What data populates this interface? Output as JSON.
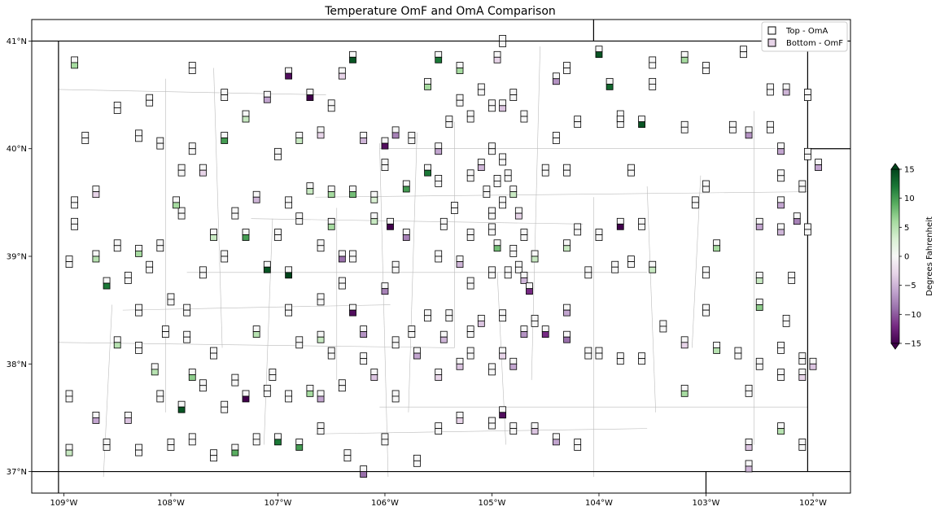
{
  "title": "Temperature OmF and OmA Comparison",
  "legend": {
    "placement": "upper-right",
    "items": [
      {
        "label": "Top - OmA"
      },
      {
        "label": "Bottom - OmF"
      }
    ]
  },
  "map": {
    "lon_range": [
      -109.3,
      -101.65
    ],
    "lat_range": [
      36.8,
      41.2
    ],
    "state_border": {
      "lon": [
        -109.05,
        -102.05
      ],
      "lat": [
        37.0,
        41.0
      ]
    },
    "lon_ticks": [
      "109°W",
      "108°W",
      "107°W",
      "106°W",
      "105°W",
      "104°W",
      "103°W",
      "102°W"
    ],
    "lat_ticks": [
      "41°N",
      "40°N",
      "39°N",
      "38°N",
      "37°N"
    ]
  },
  "colorbar": {
    "label": "Degrees Fahrenheit",
    "range": [
      -15,
      15
    ],
    "ticks": [
      "15",
      "10",
      "5",
      "0",
      "−5",
      "−10",
      "−15"
    ],
    "colormap": "PRGn",
    "stops": [
      "#40004b",
      "#762a83",
      "#9970ab",
      "#c2a5cf",
      "#e7d4e8",
      "#f7f7f7",
      "#d9f0d3",
      "#a6dba0",
      "#5aae61",
      "#1b7837",
      "#00441b"
    ]
  },
  "chart_data": {
    "type": "scatter",
    "title": "Temperature OmF and OmA Comparison",
    "xlabel": "",
    "ylabel": "",
    "x_range": [
      -109.3,
      -101.65
    ],
    "y_range": [
      36.8,
      41.2
    ],
    "value_range": [
      -15,
      15
    ],
    "series": [
      {
        "name": "Top - OmA"
      },
      {
        "name": "Bottom - OmF"
      }
    ],
    "points": [
      [
        -108.5,
        40.38,
        0,
        0
      ],
      [
        -108.2,
        40.45,
        0,
        0
      ],
      [
        -107.8,
        40.75,
        0,
        0
      ],
      [
        -108.3,
        40.12,
        0,
        0
      ],
      [
        -107.5,
        40.5,
        0,
        0
      ],
      [
        -107.1,
        40.48,
        0,
        -6
      ],
      [
        -106.9,
        40.7,
        0,
        -14
      ],
      [
        -106.7,
        40.5,
        0,
        -15
      ],
      [
        -106.3,
        40.85,
        0,
        14
      ],
      [
        -106.4,
        40.7,
        0,
        -3
      ],
      [
        -106.2,
        40.1,
        0,
        -5
      ],
      [
        -106.0,
        40.05,
        0,
        -14
      ],
      [
        -105.9,
        40.15,
        0,
        -8
      ],
      [
        -105.1,
        40.55,
        0,
        0
      ],
      [
        -105.0,
        40.4,
        0,
        0
      ],
      [
        -104.9,
        40.4,
        0,
        -4
      ],
      [
        -104.8,
        40.5,
        0,
        0
      ],
      [
        -104.7,
        40.3,
        0,
        0
      ],
      [
        -105.2,
        40.3,
        0,
        0
      ],
      [
        -105.3,
        40.45,
        0,
        0
      ],
      [
        -105.0,
        40.0,
        0,
        0
      ],
      [
        -104.9,
        39.9,
        0,
        0
      ],
      [
        -105.1,
        39.85,
        0,
        -5
      ],
      [
        -105.2,
        39.75,
        0,
        0
      ],
      [
        -104.95,
        39.7,
        0,
        0
      ],
      [
        -104.85,
        39.75,
        0,
        0
      ],
      [
        -105.05,
        39.6,
        0,
        0
      ],
      [
        -104.8,
        39.6,
        0,
        4
      ],
      [
        -104.9,
        39.5,
        0,
        0
      ],
      [
        -105.0,
        39.4,
        0,
        0
      ],
      [
        -104.75,
        39.4,
        0,
        -3
      ],
      [
        -104.7,
        39.2,
        0,
        0
      ],
      [
        -104.8,
        39.05,
        0,
        0
      ],
      [
        -104.75,
        38.9,
        0,
        0
      ],
      [
        -104.7,
        38.8,
        0,
        -5
      ],
      [
        -104.65,
        38.7,
        0,
        -12
      ],
      [
        -104.6,
        39.0,
        0,
        4
      ],
      [
        -104.85,
        38.85,
        0,
        0
      ],
      [
        -105.0,
        38.85,
        0,
        0
      ],
      [
        -104.95,
        39.1,
        0,
        8
      ],
      [
        -105.5,
        39.7,
        0,
        0
      ],
      [
        -105.6,
        39.8,
        0,
        12
      ],
      [
        -105.8,
        39.65,
        0,
        10
      ],
      [
        -106.1,
        39.55,
        0,
        3
      ],
      [
        -106.3,
        39.6,
        0,
        8
      ],
      [
        -106.5,
        39.6,
        0,
        6
      ],
      [
        -106.7,
        39.63,
        0,
        4
      ],
      [
        -106.9,
        39.5,
        0,
        0
      ],
      [
        -107.2,
        39.55,
        0,
        -5
      ],
      [
        -107.4,
        39.4,
        0,
        0
      ],
      [
        -107.6,
        39.2,
        0,
        4
      ],
      [
        -107.9,
        39.4,
        0,
        0
      ],
      [
        -108.1,
        39.1,
        0,
        0
      ],
      [
        -108.3,
        39.05,
        0,
        6
      ],
      [
        -108.5,
        39.1,
        0,
        0
      ],
      [
        -108.7,
        39.0,
        0,
        5
      ],
      [
        -108.9,
        39.3,
        0,
        0
      ],
      [
        -108.95,
        38.95,
        0,
        0
      ],
      [
        -108.6,
        38.75,
        0,
        12
      ],
      [
        -108.4,
        38.8,
        0,
        0
      ],
      [
        -108.0,
        38.6,
        0,
        0
      ],
      [
        -107.85,
        38.5,
        0,
        0
      ],
      [
        -107.7,
        38.85,
        0,
        0
      ],
      [
        -107.5,
        39.0,
        0,
        0
      ],
      [
        -107.3,
        39.2,
        0,
        10
      ],
      [
        -107.1,
        38.9,
        0,
        14
      ],
      [
        -106.9,
        38.85,
        0,
        15
      ],
      [
        -106.6,
        38.6,
        0,
        0
      ],
      [
        -106.3,
        38.5,
        0,
        -14
      ],
      [
        -106.0,
        38.7,
        0,
        -8
      ],
      [
        -105.9,
        38.9,
        0,
        0
      ],
      [
        -105.8,
        39.2,
        0,
        -8
      ],
      [
        -105.95,
        39.3,
        0,
        -15
      ],
      [
        -106.1,
        39.35,
        0,
        4
      ],
      [
        -106.4,
        39.0,
        0,
        -9
      ],
      [
        -105.5,
        39.0,
        0,
        0
      ],
      [
        -105.3,
        38.95,
        0,
        -5
      ],
      [
        -105.2,
        38.75,
        0,
        0
      ],
      [
        -105.4,
        38.45,
        0,
        0
      ],
      [
        -105.1,
        38.4,
        0,
        -4
      ],
      [
        -104.9,
        38.45,
        0,
        0
      ],
      [
        -104.7,
        38.3,
        0,
        -7
      ],
      [
        -104.5,
        38.3,
        0,
        -12
      ],
      [
        -104.3,
        38.25,
        0,
        -9
      ],
      [
        -104.1,
        38.1,
        0,
        0
      ],
      [
        -104.6,
        38.4,
        0,
        0
      ],
      [
        -104.8,
        38.0,
        0,
        -6
      ],
      [
        -105.0,
        37.95,
        0,
        0
      ],
      [
        -105.3,
        38.0,
        0,
        -4
      ],
      [
        -105.5,
        37.9,
        0,
        -3
      ],
      [
        -105.7,
        38.1,
        0,
        -6
      ],
      [
        -105.9,
        38.2,
        0,
        0
      ],
      [
        -106.2,
        38.05,
        0,
        0
      ],
      [
        -106.5,
        38.1,
        0,
        0
      ],
      [
        -106.7,
        37.75,
        0,
        6
      ],
      [
        -106.9,
        37.7,
        0,
        0
      ],
      [
        -107.1,
        37.75,
        0,
        0
      ],
      [
        -107.3,
        37.7,
        0,
        -15
      ],
      [
        -107.5,
        37.6,
        0,
        0
      ],
      [
        -107.7,
        37.8,
        0,
        0
      ],
      [
        -107.9,
        37.6,
        0,
        14
      ],
      [
        -108.1,
        37.7,
        0,
        0
      ],
      [
        -108.4,
        37.5,
        0,
        -4
      ],
      [
        -108.7,
        37.5,
        0,
        -6
      ],
      [
        -108.95,
        37.7,
        0,
        0
      ],
      [
        -108.95,
        37.2,
        0,
        4
      ],
      [
        -108.6,
        37.25,
        0,
        0
      ],
      [
        -108.3,
        37.2,
        0,
        0
      ],
      [
        -108.0,
        37.25,
        0,
        0
      ],
      [
        -107.8,
        37.3,
        0,
        0
      ],
      [
        -107.6,
        37.15,
        0,
        0
      ],
      [
        -107.4,
        37.2,
        0,
        9
      ],
      [
        -107.2,
        37.3,
        0,
        0
      ],
      [
        -107.0,
        37.3,
        0,
        12
      ],
      [
        -106.8,
        37.25,
        0,
        10
      ],
      [
        -106.6,
        37.4,
        0,
        0
      ],
      [
        -106.35,
        37.15,
        0,
        0
      ],
      [
        -106.2,
        37.0,
        0,
        -9
      ],
      [
        -106.0,
        37.3,
        0,
        0
      ],
      [
        -105.7,
        37.1,
        0,
        0
      ],
      [
        -105.5,
        37.4,
        0,
        0
      ],
      [
        -105.3,
        37.5,
        0,
        -3
      ],
      [
        -105.0,
        37.45,
        0,
        0
      ],
      [
        -104.9,
        37.55,
        0,
        -14
      ],
      [
        -104.8,
        37.4,
        0,
        0
      ],
      [
        -104.6,
        37.4,
        0,
        -4
      ],
      [
        -104.4,
        37.3,
        0,
        -6
      ],
      [
        -104.2,
        37.25,
        0,
        0
      ],
      [
        -104.0,
        38.1,
        0,
        0
      ],
      [
        -103.8,
        38.05,
        0,
        0
      ],
      [
        -103.6,
        38.05,
        0,
        0
      ],
      [
        -103.2,
        38.2,
        0,
        -3
      ],
      [
        -102.9,
        38.15,
        0,
        5
      ],
      [
        -102.7,
        38.1,
        0,
        0
      ],
      [
        -102.5,
        38.0,
        0,
        0
      ],
      [
        -102.3,
        38.15,
        0,
        0
      ],
      [
        -102.1,
        38.05,
        0,
        0
      ],
      [
        -102.0,
        38.0,
        0,
        -4
      ],
      [
        -102.3,
        37.9,
        0,
        0
      ],
      [
        -102.1,
        37.9,
        0,
        -3
      ],
      [
        -102.6,
        37.75,
        0,
        0
      ],
      [
        -103.2,
        37.75,
        0,
        6
      ],
      [
        -102.6,
        37.25,
        0,
        -4
      ],
      [
        -102.3,
        37.4,
        0,
        5
      ],
      [
        -102.1,
        37.25,
        0,
        0
      ],
      [
        -102.6,
        37.05,
        0,
        -5
      ],
      [
        -102.25,
        38.4,
        0,
        0
      ],
      [
        -102.5,
        38.55,
        0,
        7
      ],
      [
        -103.0,
        38.5,
        0,
        0
      ],
      [
        -103.4,
        38.35,
        0,
        0
      ],
      [
        -102.5,
        38.8,
        0,
        4
      ],
      [
        -102.2,
        38.8,
        0,
        0
      ],
      [
        -102.5,
        39.3,
        0,
        -6
      ],
      [
        -102.3,
        39.25,
        0,
        -5
      ],
      [
        -102.15,
        39.35,
        0,
        -8
      ],
      [
        -102.05,
        39.25,
        0,
        0
      ],
      [
        -102.3,
        39.5,
        0,
        -6
      ],
      [
        -102.3,
        39.75,
        0,
        0
      ],
      [
        -102.1,
        39.65,
        0,
        0
      ],
      [
        -101.95,
        39.85,
        0,
        -6
      ],
      [
        -102.05,
        39.95,
        0,
        0
      ],
      [
        -102.3,
        40.0,
        0,
        -6
      ],
      [
        -102.4,
        40.2,
        0,
        0
      ],
      [
        -102.6,
        40.15,
        0,
        -7
      ],
      [
        -102.75,
        40.2,
        0,
        0
      ],
      [
        -102.25,
        40.55,
        0,
        -5
      ],
      [
        -102.4,
        40.55,
        0,
        0
      ],
      [
        -102.05,
        40.5,
        0,
        0
      ],
      [
        -102.65,
        40.9,
        0,
        0
      ],
      [
        -103.0,
        40.75,
        0,
        0
      ],
      [
        -103.2,
        40.85,
        0,
        6
      ],
      [
        -103.5,
        40.8,
        0,
        0
      ],
      [
        -103.5,
        40.6,
        0,
        0
      ],
      [
        -103.2,
        40.2,
        0,
        0
      ],
      [
        -103.0,
        39.65,
        0,
        0
      ],
      [
        -103.1,
        39.5,
        0,
        0
      ],
      [
        -102.9,
        39.1,
        0,
        6
      ],
      [
        -103.0,
        38.85,
        0,
        0
      ],
      [
        -103.5,
        38.9,
        0,
        4
      ],
      [
        -103.7,
        38.95,
        0,
        0
      ],
      [
        -103.8,
        39.3,
        0,
        -15
      ],
      [
        -103.6,
        39.3,
        0,
        0
      ],
      [
        -104.0,
        39.2,
        0,
        0
      ],
      [
        -104.2,
        39.25,
        0,
        0
      ],
      [
        -104.3,
        39.1,
        0,
        4
      ],
      [
        -104.1,
        38.85,
        0,
        0
      ],
      [
        -103.85,
        38.9,
        0,
        0
      ],
      [
        -104.3,
        38.5,
        0,
        -6
      ],
      [
        -103.7,
        39.8,
        0,
        0
      ],
      [
        -103.8,
        40.3,
        0,
        15
      ],
      [
        -103.6,
        40.25,
        0,
        14
      ],
      [
        -103.9,
        40.6,
        0,
        13
      ],
      [
        -104.3,
        40.75,
        0,
        0
      ],
      [
        -104.0,
        40.9,
        0,
        14
      ],
      [
        -104.4,
        40.65,
        0,
        -7
      ],
      [
        -104.2,
        40.25,
        0,
        0
      ],
      [
        -103.8,
        40.25,
        0,
        0
      ],
      [
        -104.4,
        40.1,
        0,
        0
      ],
      [
        -104.5,
        39.8,
        0,
        0
      ],
      [
        -104.3,
        39.8,
        0,
        0
      ],
      [
        -106.5,
        40.4,
        0,
        0
      ],
      [
        -106.6,
        40.15,
        0,
        -3
      ],
      [
        -106.8,
        40.1,
        0,
        4
      ],
      [
        -107.0,
        39.95,
        0,
        0
      ],
      [
        -107.3,
        40.3,
        0,
        4
      ],
      [
        -107.5,
        40.1,
        0,
        10
      ],
      [
        -107.8,
        40.0,
        0,
        0
      ],
      [
        -108.8,
        40.1,
        0,
        0
      ],
      [
        -108.9,
        40.8,
        0,
        6
      ],
      [
        -108.1,
        40.05,
        0,
        0
      ],
      [
        -107.9,
        39.8,
        0,
        0
      ],
      [
        -107.7,
        39.8,
        0,
        -3
      ],
      [
        -107.95,
        39.5,
        0,
        6
      ],
      [
        -108.7,
        39.6,
        0,
        -3
      ],
      [
        -108.9,
        39.5,
        0,
        0
      ],
      [
        -106.0,
        39.85,
        0,
        0
      ],
      [
        -105.75,
        40.1,
        0,
        0
      ],
      [
        -105.6,
        40.6,
        0,
        6
      ],
      [
        -105.5,
        40.85,
        0,
        12
      ],
      [
        -105.3,
        40.75,
        0,
        6
      ],
      [
        -104.9,
        41.0,
        0,
        0
      ],
      [
        -104.95,
        40.85,
        0,
        -3
      ],
      [
        -105.4,
        40.25,
        0,
        0
      ],
      [
        -105.5,
        40.0,
        0,
        -6
      ],
      [
        -105.45,
        39.3,
        0,
        0
      ],
      [
        -105.35,
        39.45,
        0,
        0
      ],
      [
        -105.2,
        39.2,
        0,
        0
      ],
      [
        -105.0,
        39.25,
        0,
        0
      ],
      [
        -106.3,
        39.0,
        0,
        0
      ],
      [
        -106.4,
        38.75,
        0,
        0
      ],
      [
        -106.2,
        38.3,
        0,
        -7
      ],
      [
        -105.75,
        38.3,
        0,
        0
      ],
      [
        -105.6,
        38.45,
        0,
        0
      ],
      [
        -105.45,
        38.25,
        0,
        -5
      ],
      [
        -105.2,
        38.3,
        0,
        0
      ],
      [
        -105.2,
        38.1,
        0,
        0
      ],
      [
        -104.9,
        38.1,
        0,
        -3
      ],
      [
        -105.9,
        37.7,
        0,
        0
      ],
      [
        -106.1,
        37.9,
        0,
        -4
      ],
      [
        -106.4,
        37.8,
        0,
        0
      ],
      [
        -106.6,
        37.7,
        0,
        -6
      ],
      [
        -107.05,
        37.9,
        0,
        0
      ],
      [
        -107.4,
        37.85,
        0,
        0
      ],
      [
        -107.6,
        38.1,
        0,
        0
      ],
      [
        -107.85,
        38.25,
        0,
        0
      ],
      [
        -108.05,
        38.3,
        0,
        0
      ],
      [
        -108.3,
        38.15,
        0,
        0
      ],
      [
        -108.5,
        38.2,
        0,
        5
      ],
      [
        -108.15,
        37.95,
        0,
        5
      ],
      [
        -107.8,
        37.9,
        0,
        7
      ],
      [
        -108.3,
        38.5,
        0,
        0
      ],
      [
        -108.2,
        38.9,
        0,
        0
      ],
      [
        -107.2,
        38.3,
        0,
        5
      ],
      [
        -106.8,
        38.2,
        0,
        0
      ],
      [
        -106.6,
        38.25,
        0,
        4
      ],
      [
        -106.9,
        38.5,
        0,
        0
      ],
      [
        -107.0,
        39.2,
        0,
        0
      ],
      [
        -106.8,
        39.35,
        0,
        0
      ],
      [
        -106.6,
        39.1,
        0,
        0
      ],
      [
        -106.5,
        39.3,
        0,
        6
      ]
    ]
  }
}
